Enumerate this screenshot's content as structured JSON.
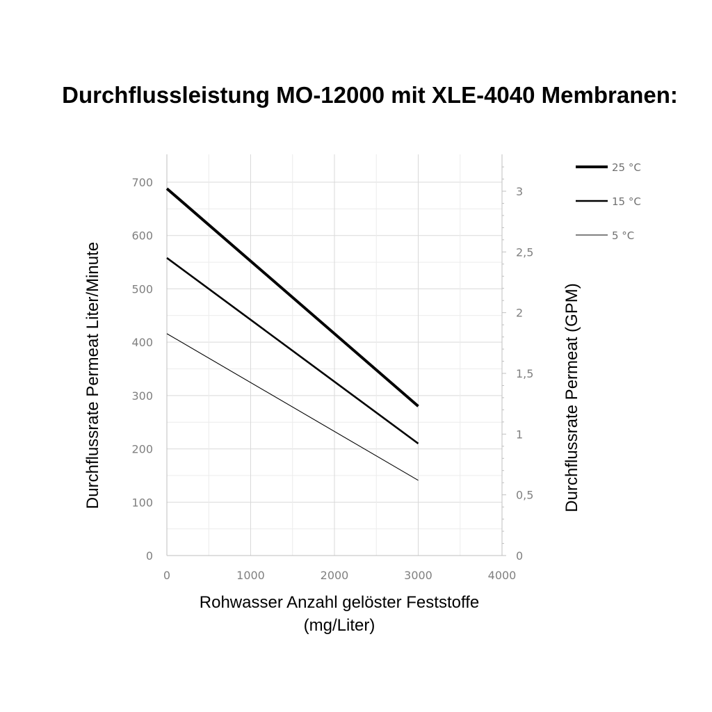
{
  "chart_data": {
    "type": "line",
    "title": "Durchflussleistung MO-12000 mit XLE-4040 Membranen:",
    "xlabel": [
      "Rohwasser Anzahl gelöster Feststoffe",
      "(mg/Liter)"
    ],
    "ylabel": "Durchflussrate Permeat Liter/Minute",
    "y2label": "Durchflussrate Permeat (GPM)",
    "xlim": [
      0,
      4000
    ],
    "ylim": [
      0,
      750
    ],
    "y2lim": [
      0,
      3.3
    ],
    "xticks": [
      "0",
      "1000",
      "2000",
      "3000",
      "4000"
    ],
    "yticks": [
      "0",
      "100",
      "200",
      "300",
      "400",
      "500",
      "600",
      "700"
    ],
    "y2ticks": [
      "0",
      "0,5",
      "1",
      "1,5",
      "2",
      "2,5",
      "3"
    ],
    "grid": true,
    "legend_position": "top-right",
    "series": [
      {
        "name": "25 °C",
        "x": [
          0,
          3000
        ],
        "y": [
          688,
          280
        ],
        "stroke": "#000000",
        "weight": "thick"
      },
      {
        "name": "15 °C",
        "x": [
          0,
          3000
        ],
        "y": [
          558,
          210
        ],
        "stroke": "#000000",
        "weight": "medium"
      },
      {
        "name": "5 °C",
        "x": [
          0,
          3000
        ],
        "y": [
          416,
          141
        ],
        "stroke": "#000000",
        "weight": "thin"
      }
    ]
  }
}
